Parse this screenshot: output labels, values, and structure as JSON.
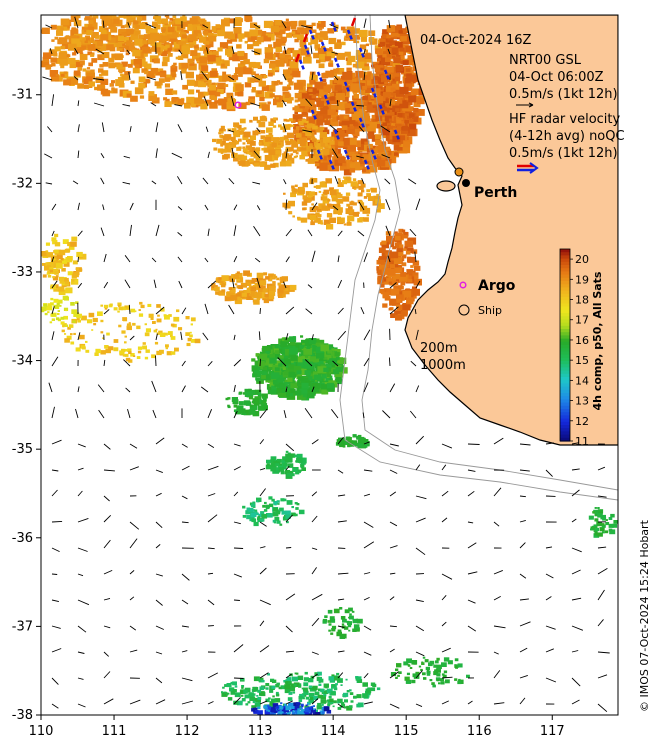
{
  "header": {
    "timestamp": "04-Oct-2024 16Z"
  },
  "legend": {
    "nrt_title": "NRT00 GSL",
    "nrt_time": "04-Oct 06:00Z",
    "nrt_scale": "0.5m/s (1kt 12h)",
    "hf_line1": "HF radar velocity",
    "hf_line2": "(4-12h avg) noQC",
    "hf_scale": "0.5m/s (1kt 12h)"
  },
  "places": {
    "perth": "Perth",
    "argo": "Argo",
    "ship": "Ship"
  },
  "isobaths": [
    "200m",
    "1000m"
  ],
  "colorbar": {
    "title": "4h comp, p50, All Sats",
    "ticks": [
      "20",
      "19",
      "18",
      "17",
      "16",
      "15",
      "14",
      "13",
      "12",
      "11"
    ],
    "min": 11,
    "max": 20.5
  },
  "axes": {
    "x_ticks": [
      "110",
      "111",
      "112",
      "113",
      "114",
      "115",
      "116",
      "117"
    ],
    "y_ticks": [
      "-31",
      "-32",
      "-33",
      "-34",
      "-35",
      "-36",
      "-37",
      "-38"
    ],
    "x_range": [
      110,
      117.9
    ],
    "y_range": [
      -38,
      -30.1
    ]
  },
  "credit": "© IMOS 07-Oct-2024 15:24 Hobart",
  "colors": {
    "land": "#fbc898",
    "argo_marker": "#e020e0",
    "hf_arrow_red": "#e00000",
    "hf_arrow_blue": "#1020e0",
    "coast": "#000000",
    "isobath": "#999999"
  }
}
